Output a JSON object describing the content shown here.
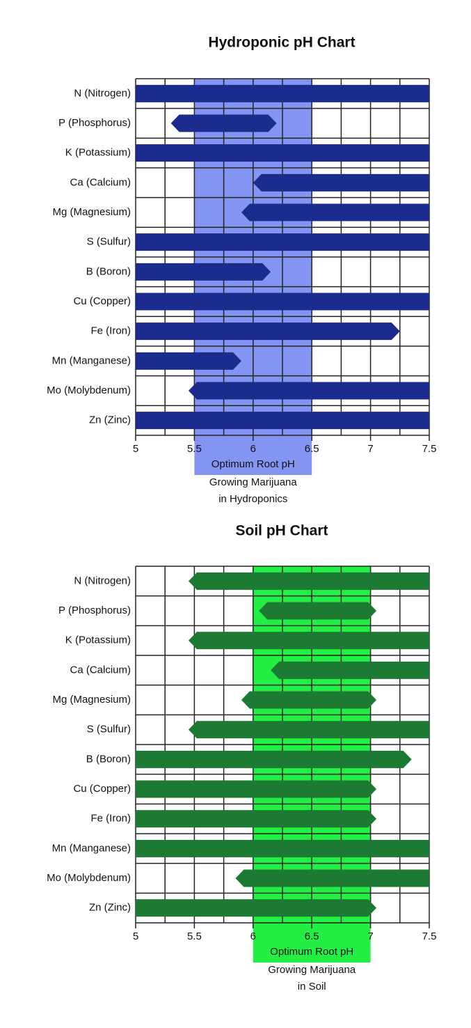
{
  "chart_data": [
    {
      "type": "range_bar",
      "title": "Hydroponic pH Chart",
      "categories": [
        "N (Nitrogen)",
        "P (Phosphorus)",
        "K (Potassium)",
        "Ca (Calcium)",
        "Mg (Magnesium)",
        "S (Sulfur)",
        "B (Boron)",
        "Cu (Copper)",
        "Fe (Iron)",
        "Mn (Manganese)",
        "Mo (Molybdenum)",
        "Zn (Zinc)"
      ],
      "starts": [
        5,
        5.3,
        5,
        6,
        5.9,
        5,
        5,
        5,
        5,
        5,
        5.45,
        5
      ],
      "ends": [
        7.5,
        6.2,
        7.5,
        7.5,
        7.5,
        7.5,
        6.15,
        7.5,
        7.25,
        5.9,
        7.5,
        7.5
      ],
      "color": "#1b2c8e",
      "xlim": [
        5,
        7.5
      ],
      "xticks": [
        5,
        5.5,
        6,
        6.5,
        7,
        7.5
      ],
      "xminor": [
        5.25,
        5.75,
        6.25,
        6.75,
        7.25
      ],
      "grid": true,
      "band": {
        "range": [
          5.5,
          6.5
        ],
        "color": "#8494f2",
        "label": "Optimum Root pH",
        "notes": [
          "Growing Marijuana",
          "in Hydroponics"
        ]
      }
    },
    {
      "type": "range_bar",
      "title": "Soil pH Chart",
      "categories": [
        "N (Nitrogen)",
        "P (Phosphorus)",
        "K (Potassium)",
        "Ca (Calcium)",
        "Mg (Magnesium)",
        "S (Sulfur)",
        "B (Boron)",
        "Cu (Copper)",
        "Fe (Iron)",
        "Mn (Manganese)",
        "Mo (Molybdenum)",
        "Zn (Zinc)"
      ],
      "starts": [
        5.45,
        6.05,
        5.45,
        6.15,
        5.9,
        5.45,
        5,
        5,
        5,
        5,
        5.85,
        5
      ],
      "ends": [
        7.5,
        7.05,
        7.5,
        7.5,
        7.05,
        7.5,
        7.35,
        7.05,
        7.05,
        7.5,
        7.5,
        7.05
      ],
      "color": "#1c7a32",
      "xlim": [
        5,
        7.5
      ],
      "xticks": [
        5,
        5.5,
        6,
        6.5,
        7,
        7.5
      ],
      "xminor": [
        5.25,
        5.75,
        6.25,
        6.75,
        7.25
      ],
      "grid": true,
      "band": {
        "range": [
          6,
          7
        ],
        "color": "#22ee44",
        "label": "Optimum Root pH",
        "notes": [
          "Growing Marijuana",
          "in Soil"
        ]
      }
    }
  ]
}
